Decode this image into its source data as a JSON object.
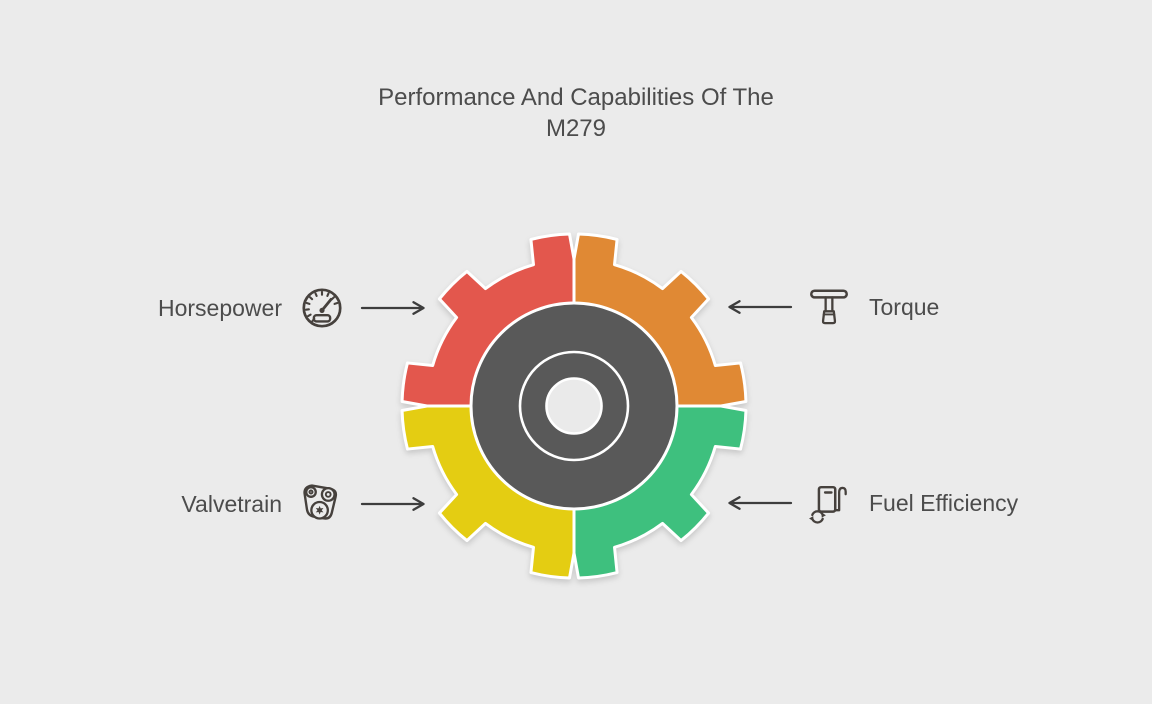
{
  "title": {
    "line1": "Performance And Capabilities Of The",
    "line2": "M279"
  },
  "callouts": [
    {
      "label": "Horsepower",
      "icon": "speedometer-icon",
      "side": "left"
    },
    {
      "label": "Torque",
      "icon": "t-handle-wrench-icon",
      "side": "right"
    },
    {
      "label": "Valvetrain",
      "icon": "timing-chain-icon",
      "side": "left"
    },
    {
      "label": "Fuel Efficiency",
      "icon": "fuel-pump-icon",
      "side": "right"
    }
  ],
  "gear": {
    "quadrants": [
      {
        "name": "horsepower",
        "position": "top-left",
        "color": "#e3574d"
      },
      {
        "name": "torque",
        "position": "top-right",
        "color": "#e08934"
      },
      {
        "name": "fuel-efficiency",
        "position": "bottom-right",
        "color": "#3ec07e"
      },
      {
        "name": "valvetrain",
        "position": "bottom-left",
        "color": "#e4cd12"
      }
    ],
    "hub_color": "#595959",
    "hub_hole_color": "#eaeaea",
    "outline_color": "#ffffff"
  },
  "colors": {
    "background": "#ebebeb",
    "text": "#4c4c4c",
    "icon_stroke": "#46413d",
    "arrow": "#3d3d3d"
  }
}
